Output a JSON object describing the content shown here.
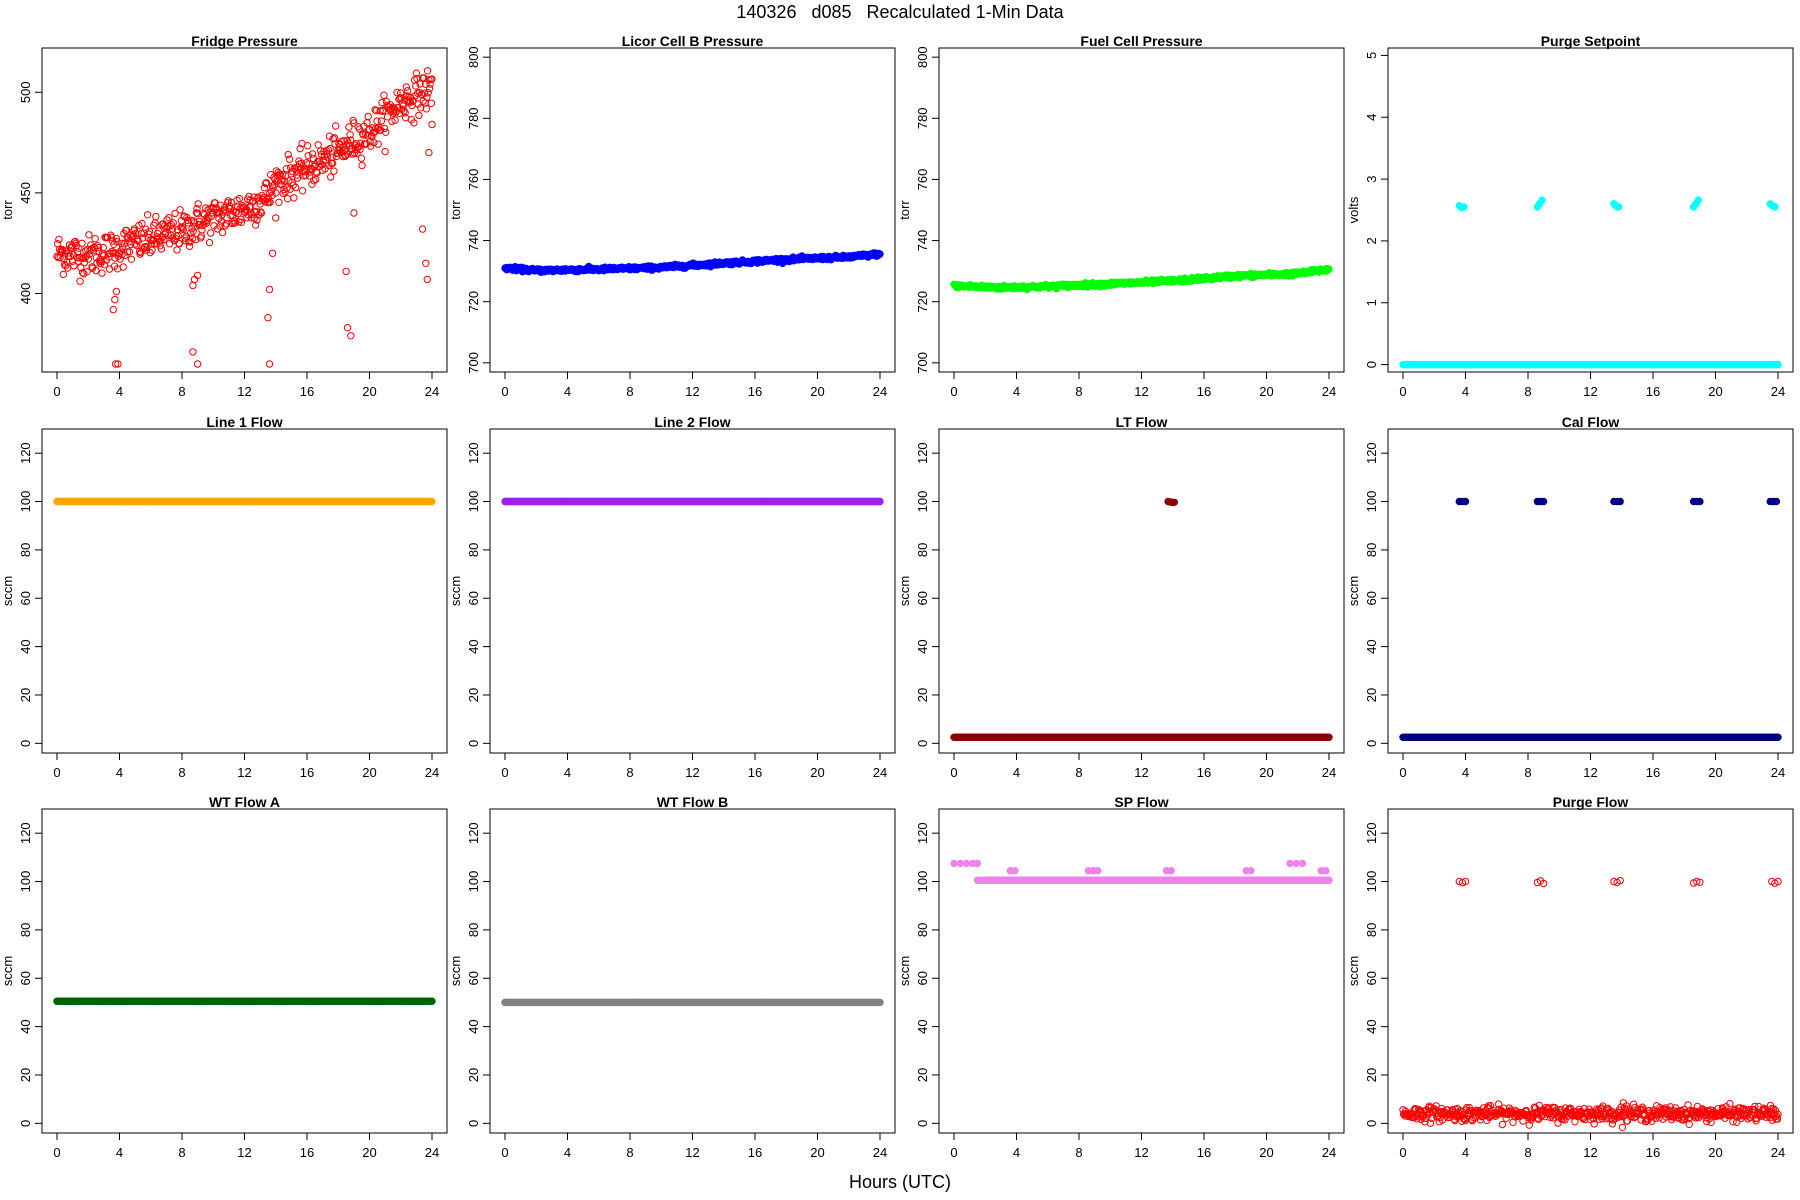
{
  "header": {
    "title": "140326   d085   Recalculated 1-Min Data",
    "xlabel": "Hours (UTC)"
  },
  "colors": {
    "red": "#ff0000",
    "blue": "#0000ff",
    "green": "#00ff00",
    "cyan": "#00ffff",
    "orange": "#ffa500",
    "purple": "#a020f0",
    "darkred": "#8b0000",
    "navy": "#000080",
    "darkgreen": "#006400",
    "gray": "#808080",
    "violet": "#ee82ee"
  },
  "chart_data": [
    {
      "type": "scatter",
      "title": "Fridge Pressure",
      "ylabel": "torr",
      "xlim": [
        -0.96,
        24.96
      ],
      "ylim": [
        361,
        522
      ],
      "xticks": [
        0,
        4,
        8,
        12,
        16,
        20,
        24
      ],
      "yticks": [
        400,
        450,
        500
      ],
      "color": "#ff0000",
      "marker": "open",
      "trend": [
        [
          0,
          420
        ],
        [
          2,
          419
        ],
        [
          3.6,
          421
        ],
        [
          4,
          423
        ],
        [
          8,
          431
        ],
        [
          9,
          435
        ],
        [
          12,
          442
        ],
        [
          13.5,
          448
        ],
        [
          14,
          455
        ],
        [
          16,
          462
        ],
        [
          18,
          470
        ],
        [
          19,
          476
        ],
        [
          20,
          480
        ],
        [
          22,
          495
        ],
        [
          24,
          502
        ]
      ],
      "noise": 5,
      "extra_points": [
        [
          3.6,
          392
        ],
        [
          3.7,
          397
        ],
        [
          3.8,
          401
        ],
        [
          3.75,
          365
        ],
        [
          3.9,
          365
        ],
        [
          8.7,
          404
        ],
        [
          8.8,
          407
        ],
        [
          9.0,
          409
        ],
        [
          8.7,
          371
        ],
        [
          9.0,
          365
        ],
        [
          13.5,
          388
        ],
        [
          13.6,
          402
        ],
        [
          13.8,
          420
        ],
        [
          13.6,
          365
        ],
        [
          14.0,
          450
        ],
        [
          18.5,
          411
        ],
        [
          18.6,
          383
        ],
        [
          18.8,
          379
        ],
        [
          19.0,
          440
        ],
        [
          23.4,
          432
        ],
        [
          23.6,
          415
        ],
        [
          23.7,
          407
        ],
        [
          23.8,
          470
        ],
        [
          24.0,
          484
        ]
      ]
    },
    {
      "type": "scatter",
      "title": "Licor Cell B Pressure",
      "ylabel": "torr",
      "xlim": [
        -0.96,
        24.96
      ],
      "ylim": [
        697,
        803
      ],
      "xticks": [
        0,
        4,
        8,
        12,
        16,
        20,
        24
      ],
      "yticks": [
        700,
        720,
        740,
        760,
        780,
        800
      ],
      "color": "#0000ff",
      "marker": "filled",
      "trend": [
        [
          0,
          731
        ],
        [
          2,
          730.2
        ],
        [
          6,
          730.6
        ],
        [
          10,
          731.2
        ],
        [
          14,
          732.6
        ],
        [
          18,
          733.8
        ],
        [
          22,
          734.6
        ],
        [
          24,
          735.6
        ]
      ],
      "noise": 0.3,
      "extra_points": []
    },
    {
      "type": "scatter",
      "title": "Fuel Cell Pressure",
      "ylabel": "torr",
      "xlim": [
        -0.96,
        24.96
      ],
      "ylim": [
        697,
        803
      ],
      "xticks": [
        0,
        4,
        8,
        12,
        16,
        20,
        24
      ],
      "yticks": [
        700,
        720,
        740,
        760,
        780,
        800
      ],
      "color": "#00ff00",
      "marker": "filled",
      "trend": [
        [
          0,
          725.2
        ],
        [
          3,
          724.6
        ],
        [
          6,
          725
        ],
        [
          10,
          725.8
        ],
        [
          14,
          726.8
        ],
        [
          18,
          728.4
        ],
        [
          22,
          729.2
        ],
        [
          24,
          730.6
        ]
      ],
      "noise": 0.3,
      "extra_points": []
    },
    {
      "type": "scatter",
      "title": "Purge Setpoint",
      "ylabel": "volts",
      "xlim": [
        -0.96,
        24.96
      ],
      "ylim": [
        -0.12,
        5.12
      ],
      "xticks": [
        0,
        4,
        8,
        12,
        16,
        20,
        24
      ],
      "yticks": [
        0,
        1,
        2,
        3,
        4,
        5
      ],
      "color": "#00ffff",
      "marker": "filled",
      "trend": [
        [
          0,
          0
        ],
        [
          24,
          0
        ]
      ],
      "noise": 0,
      "extra_points": [
        [
          3.6,
          2.57
        ],
        [
          3.75,
          2.54
        ],
        [
          3.9,
          2.55
        ],
        [
          8.6,
          2.55
        ],
        [
          8.75,
          2.6
        ],
        [
          8.9,
          2.66
        ],
        [
          13.5,
          2.6
        ],
        [
          13.65,
          2.56
        ],
        [
          13.8,
          2.55
        ],
        [
          18.6,
          2.55
        ],
        [
          18.75,
          2.6
        ],
        [
          18.9,
          2.66
        ],
        [
          23.5,
          2.6
        ],
        [
          23.65,
          2.57
        ],
        [
          23.8,
          2.55
        ]
      ]
    },
    {
      "type": "scatter",
      "title": "Line 1 Flow",
      "ylabel": "sccm",
      "xlim": [
        -0.96,
        24.96
      ],
      "ylim": [
        -4,
        130
      ],
      "xticks": [
        0,
        4,
        8,
        12,
        16,
        20,
        24
      ],
      "yticks": [
        0,
        20,
        40,
        60,
        80,
        100,
        120
      ],
      "color": "#ffa500",
      "marker": "filled",
      "trend": [
        [
          0,
          100
        ],
        [
          24,
          100
        ]
      ],
      "noise": 0,
      "extra_points": []
    },
    {
      "type": "scatter",
      "title": "Line 2 Flow",
      "ylabel": "sccm",
      "xlim": [
        -0.96,
        24.96
      ],
      "ylim": [
        -4,
        130
      ],
      "xticks": [
        0,
        4,
        8,
        12,
        16,
        20,
        24
      ],
      "yticks": [
        0,
        20,
        40,
        60,
        80,
        100,
        120
      ],
      "color": "#a020f0",
      "marker": "filled",
      "trend": [
        [
          0,
          100
        ],
        [
          24,
          100
        ]
      ],
      "noise": 0,
      "extra_points": []
    },
    {
      "type": "scatter",
      "title": "LT Flow",
      "ylabel": "sccm",
      "xlim": [
        -0.96,
        24.96
      ],
      "ylim": [
        -4,
        130
      ],
      "xticks": [
        0,
        4,
        8,
        12,
        16,
        20,
        24
      ],
      "yticks": [
        0,
        20,
        40,
        60,
        80,
        100,
        120
      ],
      "color": "#8b0000",
      "marker": "filled",
      "trend": [
        [
          0,
          2.5
        ],
        [
          24,
          2.5
        ]
      ],
      "noise": 0,
      "extra_points": [
        [
          13.7,
          100
        ],
        [
          13.85,
          99.8
        ],
        [
          14.0,
          99.6
        ],
        [
          14.1,
          99.7
        ]
      ]
    },
    {
      "type": "scatter",
      "title": "Cal Flow",
      "ylabel": "sccm",
      "xlim": [
        -0.96,
        24.96
      ],
      "ylim": [
        -4,
        130
      ],
      "xticks": [
        0,
        4,
        8,
        12,
        16,
        20,
        24
      ],
      "yticks": [
        0,
        20,
        40,
        60,
        80,
        100,
        120
      ],
      "color": "#000080",
      "marker": "filled",
      "trend": [
        [
          0,
          2.5
        ],
        [
          24,
          2.5
        ]
      ],
      "noise": 0,
      "extra_points": [
        [
          3.6,
          100
        ],
        [
          3.8,
          100
        ],
        [
          4.0,
          100
        ],
        [
          8.6,
          100
        ],
        [
          8.8,
          100
        ],
        [
          9.0,
          100
        ],
        [
          13.5,
          100
        ],
        [
          13.7,
          100
        ],
        [
          13.9,
          100
        ],
        [
          18.6,
          100
        ],
        [
          18.8,
          100
        ],
        [
          19.0,
          100
        ],
        [
          23.5,
          100
        ],
        [
          23.7,
          100
        ],
        [
          23.9,
          100
        ]
      ]
    },
    {
      "type": "scatter",
      "title": "WT Flow A",
      "ylabel": "sccm",
      "xlim": [
        -0.96,
        24.96
      ],
      "ylim": [
        -4,
        130
      ],
      "xticks": [
        0,
        4,
        8,
        12,
        16,
        20,
        24
      ],
      "yticks": [
        0,
        20,
        40,
        60,
        80,
        100,
        120
      ],
      "color": "#006400",
      "marker": "filled",
      "trend": [
        [
          0,
          50.5
        ],
        [
          24,
          50.5
        ]
      ],
      "noise": 0,
      "extra_points": []
    },
    {
      "type": "scatter",
      "title": "WT Flow B",
      "ylabel": "sccm",
      "xlim": [
        -0.96,
        24.96
      ],
      "ylim": [
        -4,
        130
      ],
      "xticks": [
        0,
        4,
        8,
        12,
        16,
        20,
        24
      ],
      "yticks": [
        0,
        20,
        40,
        60,
        80,
        100,
        120
      ],
      "color": "#808080",
      "marker": "filled",
      "trend": [
        [
          0,
          50
        ],
        [
          24,
          50
        ]
      ],
      "noise": 0,
      "extra_points": []
    },
    {
      "type": "scatter",
      "title": "SP Flow",
      "ylabel": "sccm",
      "xlim": [
        -0.96,
        24.96
      ],
      "ylim": [
        -4,
        130
      ],
      "xticks": [
        0,
        4,
        8,
        12,
        16,
        20,
        24
      ],
      "yticks": [
        0,
        20,
        40,
        60,
        80,
        100,
        120
      ],
      "color": "#ee82ee",
      "marker": "filled",
      "trend": [
        [
          1.5,
          100.5
        ],
        [
          24,
          100.5
        ]
      ],
      "noise": 0,
      "extra_points": [
        [
          0,
          107.5
        ],
        [
          0.4,
          107.5
        ],
        [
          0.8,
          107.5
        ],
        [
          1.2,
          107.5
        ],
        [
          1.5,
          107.5
        ],
        [
          3.6,
          104.5
        ],
        [
          3.9,
          104.5
        ],
        [
          8.6,
          104.5
        ],
        [
          8.9,
          104.5
        ],
        [
          9.2,
          104.5
        ],
        [
          13.6,
          104.5
        ],
        [
          13.9,
          104.5
        ],
        [
          18.7,
          104.5
        ],
        [
          19.0,
          104.5
        ],
        [
          21.5,
          107.5
        ],
        [
          21.9,
          107.5
        ],
        [
          22.3,
          107.5
        ],
        [
          23.5,
          104.5
        ],
        [
          23.8,
          104.5
        ]
      ]
    },
    {
      "type": "scatter",
      "title": "Purge Flow",
      "ylabel": "sccm",
      "xlim": [
        -0.96,
        24.96
      ],
      "ylim": [
        -4,
        130
      ],
      "xticks": [
        0,
        4,
        8,
        12,
        16,
        20,
        24
      ],
      "yticks": [
        0,
        20,
        40,
        60,
        80,
        100,
        120
      ],
      "color": "#ff0000",
      "marker": "open",
      "trend": [
        [
          0,
          4
        ],
        [
          24,
          4
        ]
      ],
      "noise": 1.5,
      "extra_points": [
        [
          3.6,
          100
        ],
        [
          3.8,
          99.5
        ],
        [
          4.0,
          100
        ],
        [
          8.6,
          99.6
        ],
        [
          8.8,
          100.3
        ],
        [
          9.0,
          99.2
        ],
        [
          13.5,
          100
        ],
        [
          13.7,
          99.6
        ],
        [
          13.9,
          100.4
        ],
        [
          18.6,
          99.4
        ],
        [
          18.8,
          100
        ],
        [
          19.0,
          99.7
        ],
        [
          23.6,
          100
        ],
        [
          23.8,
          99.3
        ],
        [
          24.0,
          100
        ],
        [
          14.1,
          8.5
        ],
        [
          14.3,
          7.2
        ]
      ]
    }
  ]
}
